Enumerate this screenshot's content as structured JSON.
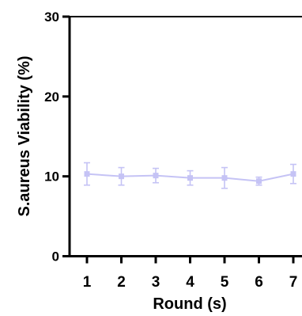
{
  "chart_data": {
    "type": "line",
    "title": "",
    "xlabel": "Round (s)",
    "ylabel": "S.aureus Viability (%)",
    "x": [
      1,
      2,
      3,
      4,
      5,
      6,
      7
    ],
    "categories": [
      "1",
      "2",
      "3",
      "4",
      "5",
      "6",
      "7"
    ],
    "ylim": [
      0,
      30
    ],
    "yticks": [
      0,
      10,
      20,
      30
    ],
    "yticklabels": [
      "0",
      "10",
      "20",
      "30"
    ],
    "grid": false,
    "legend": "none",
    "series": [
      {
        "values": [
          10.3,
          10.0,
          10.1,
          9.8,
          9.8,
          9.4,
          10.3
        ],
        "error": [
          1.4,
          1.1,
          0.9,
          0.9,
          1.3,
          0.5,
          1.2
        ],
        "color": "#c5c3f5",
        "marker": "square"
      }
    ]
  }
}
